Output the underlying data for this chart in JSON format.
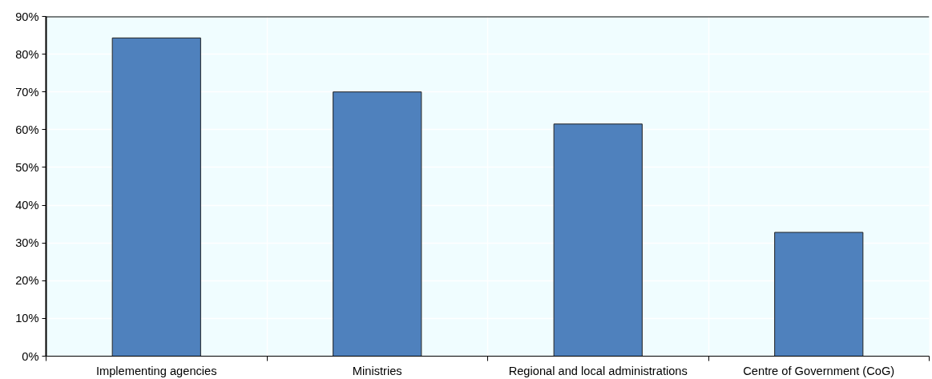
{
  "chart_data": {
    "type": "bar",
    "categories": [
      "Implementing agencies",
      "Ministries",
      "Regional and local administrations",
      "Centre of Government (CoG)"
    ],
    "values": [
      84.3,
      70.0,
      61.5,
      32.8
    ],
    "color": "#4f81bd",
    "ylim": [
      0,
      90
    ],
    "yticks": [
      {
        "value": 0,
        "label": "0%"
      },
      {
        "value": 10,
        "label": "10%"
      },
      {
        "value": 20,
        "label": "20%"
      },
      {
        "value": 30,
        "label": "30%"
      },
      {
        "value": 40,
        "label": "40%"
      },
      {
        "value": 50,
        "label": "50%"
      },
      {
        "value": 60,
        "label": "60%"
      },
      {
        "value": 70,
        "label": "70%"
      },
      {
        "value": 80,
        "label": "80%"
      },
      {
        "value": 90,
        "label": "90%"
      }
    ],
    "grid": true
  }
}
